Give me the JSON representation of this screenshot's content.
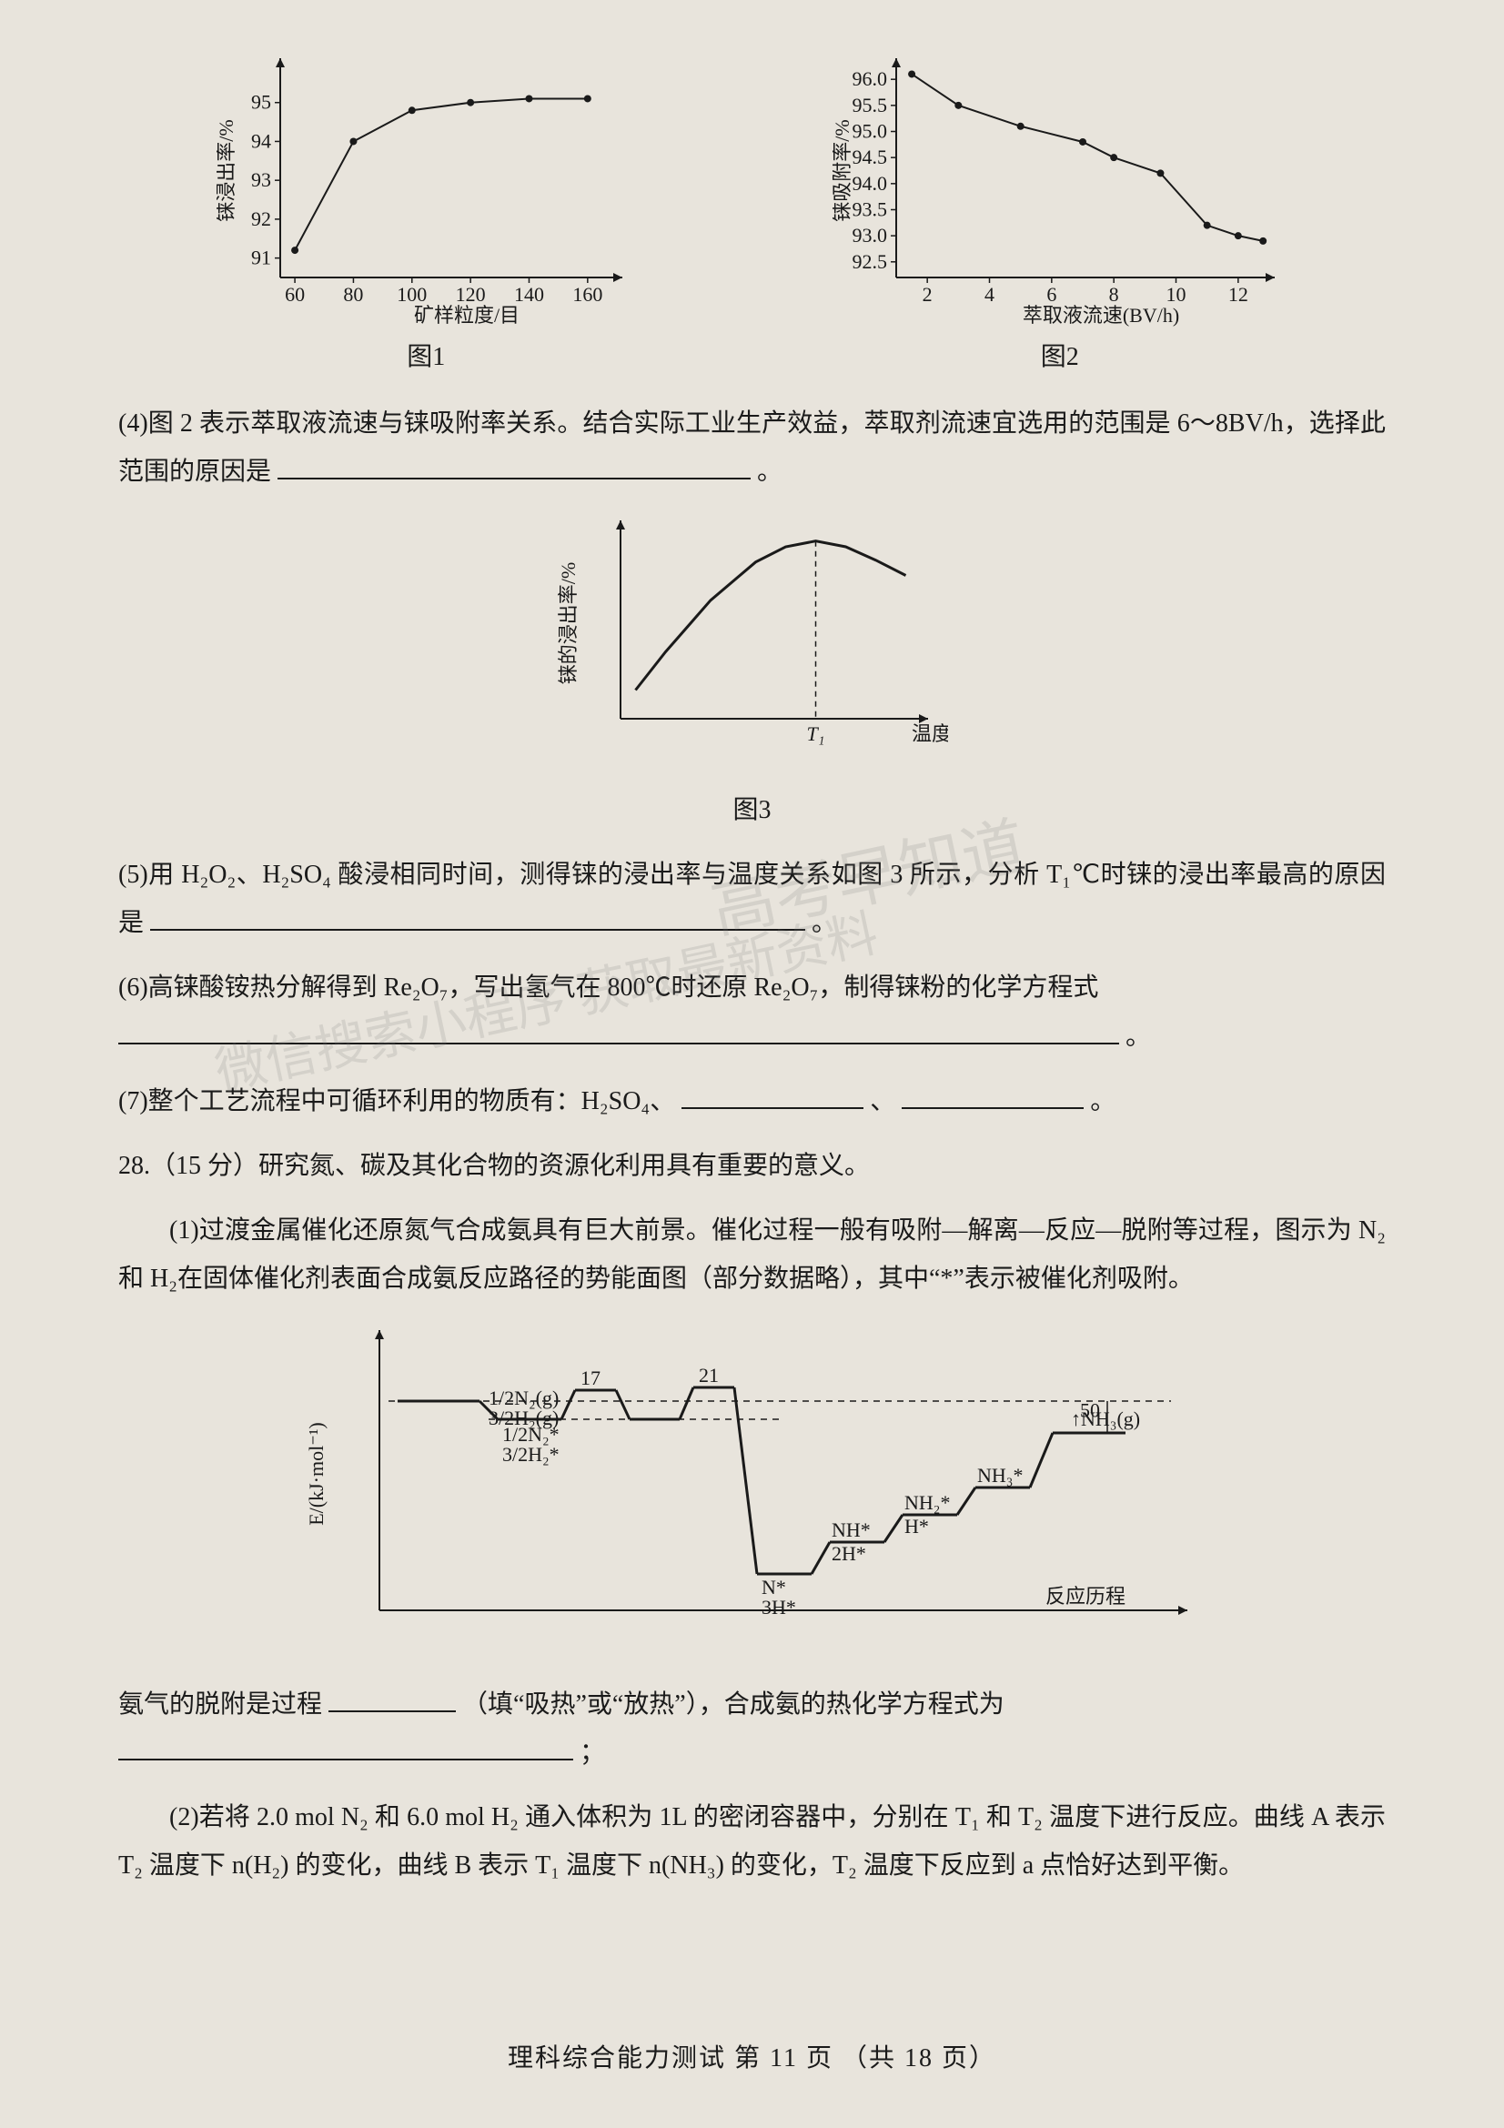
{
  "fig1": {
    "type": "line",
    "ylabel": "铼浸出率/%",
    "xlabel": "矿样粒度/目",
    "caption": "图1",
    "xticks": [
      60,
      80,
      100,
      120,
      140,
      160
    ],
    "yticks": [
      91,
      92,
      93,
      94,
      95
    ],
    "xlim": [
      55,
      170
    ],
    "ylim": [
      90.5,
      96
    ],
    "points": [
      [
        60,
        91.2
      ],
      [
        80,
        94.0
      ],
      [
        100,
        94.8
      ],
      [
        120,
        95.0
      ],
      [
        140,
        95.1
      ],
      [
        160,
        95.1
      ]
    ],
    "line_color": "#1a1a1a",
    "bg_color": "#e8e4dc",
    "axis_color": "#1a1a1a",
    "marker": "circle",
    "marker_size": 4,
    "line_width": 2,
    "label_fontsize": 22
  },
  "fig2": {
    "type": "line",
    "ylabel": "铼吸附率/%",
    "xlabel": "萃取液流速(BV/h)",
    "caption": "图2",
    "xticks": [
      2,
      4,
      6,
      8,
      10,
      12
    ],
    "yticks": [
      92.5,
      93.0,
      93.5,
      94.0,
      94.5,
      95.0,
      95.5,
      96.0
    ],
    "yticks_labels": [
      "92.5",
      "93.0",
      "93.5",
      "94.0",
      "94.5",
      "95.0",
      "95.5",
      "96.0"
    ],
    "xlim": [
      1,
      13
    ],
    "ylim": [
      92.2,
      96.3
    ],
    "points": [
      [
        1.5,
        96.1
      ],
      [
        3,
        95.5
      ],
      [
        5,
        95.1
      ],
      [
        7,
        94.8
      ],
      [
        8,
        94.5
      ],
      [
        9.5,
        94.2
      ],
      [
        11,
        93.2
      ],
      [
        12,
        93.0
      ],
      [
        12.8,
        92.9
      ]
    ],
    "line_color": "#1a1a1a",
    "bg_color": "#e8e4dc",
    "axis_color": "#1a1a1a",
    "marker": "circle",
    "marker_size": 4,
    "line_width": 2,
    "label_fontsize": 22
  },
  "fig3": {
    "type": "line",
    "ylabel": "铼的浸出率/%",
    "xlabel": "温度/℃",
    "caption": "图3",
    "x_marker_label": "T₁",
    "curve": [
      [
        0.05,
        0.15
      ],
      [
        0.15,
        0.35
      ],
      [
        0.3,
        0.62
      ],
      [
        0.45,
        0.82
      ],
      [
        0.55,
        0.9
      ],
      [
        0.65,
        0.93
      ],
      [
        0.75,
        0.9
      ],
      [
        0.85,
        0.83
      ],
      [
        0.95,
        0.75
      ]
    ],
    "peak_x": 0.65,
    "line_color": "#1a1a1a",
    "bg_color": "#e8e4dc",
    "axis_color": "#1a1a1a",
    "line_width": 3,
    "label_fontsize": 22
  },
  "fig4": {
    "type": "energy-profile",
    "ylabel": "E/(kJ·mol⁻¹)",
    "xlabel": "反应历程",
    "left_species_top": "1/2N₂(g)",
    "left_species_bot": "3/2H₂(g)",
    "step1_top": "1/2N₂*",
    "step1_bot": "3/2H₂*",
    "barrier1": "17",
    "barrier2": "21",
    "right_delta": "50",
    "valley_top": "N*",
    "valley_bot": "3H*",
    "step_nh": "NH*",
    "step_nh_2h": "2H*",
    "step_nh2": "NH₂*",
    "step_nh2_h": "H*",
    "step_nh3": "NH₃*",
    "product": "NH₃(g)",
    "line_color": "#1a1a1a",
    "bg_color": "#e8e4dc",
    "axis_color": "#1a1a1a",
    "line_width": 3,
    "label_fontsize": 22
  },
  "q4": {
    "prefix": "(4)图 2 表示萃取液流速与铼吸附率关系。结合实际工业生产效益，萃取剂流速宜选用的范围是 6～8BV/h，选择此范围的原因是",
    "suffix": "。"
  },
  "q5": {
    "prefix": "(5)用 H₂O₂、H₂SO₄ 酸浸相同时间，测得铼的浸出率与温度关系如图 3 所示，分析 T₁℃时铼的浸出率最高的原因是",
    "suffix": "。"
  },
  "q6": {
    "text": "(6)高铼酸铵热分解得到 Re₂O₇，写出氢气在 800℃时还原 Re₂O₇，制得铼粉的化学方程式",
    "suffix": "。"
  },
  "q7": {
    "prefix": "(7)整个工艺流程中可循环利用的物质有：H₂SO₄、",
    "middle": "、",
    "suffix": "。"
  },
  "q28": {
    "head": "28.（15 分）研究氮、碳及其化合物的资源化利用具有重要的意义。",
    "p1": "(1)过渡金属催化还原氮气合成氨具有巨大前景。催化过程一般有吸附—解离—反应—脱附等过程，图示为 N₂和 H₂在固体催化剂表面合成氨反应路径的势能面图（部分数据略），其中“*”表示被催化剂吸附。",
    "p_after": "氨气的脱附是过程",
    "p_after2": "（填“吸热”或“放热”），合成氨的热化学方程式为",
    "p_after3": "；",
    "p2": "(2)若将 2.0 mol N₂ 和 6.0 mol H₂ 通入体积为 1L 的密闭容器中，分别在 T₁ 和 T₂ 温度下进行反应。曲线 A 表示 T₂ 温度下 n(H₂) 的变化，曲线 B 表示 T₁ 温度下 n(NH₃) 的变化，T₂ 温度下反应到 a 点恰好达到平衡。"
  },
  "footer": {
    "text": "理科综合能力测试 第 11 页 （共 18 页）"
  },
  "watermarks": {
    "w1": "高考早知道",
    "w2": "微信搜索小程序 获取最新资料"
  }
}
